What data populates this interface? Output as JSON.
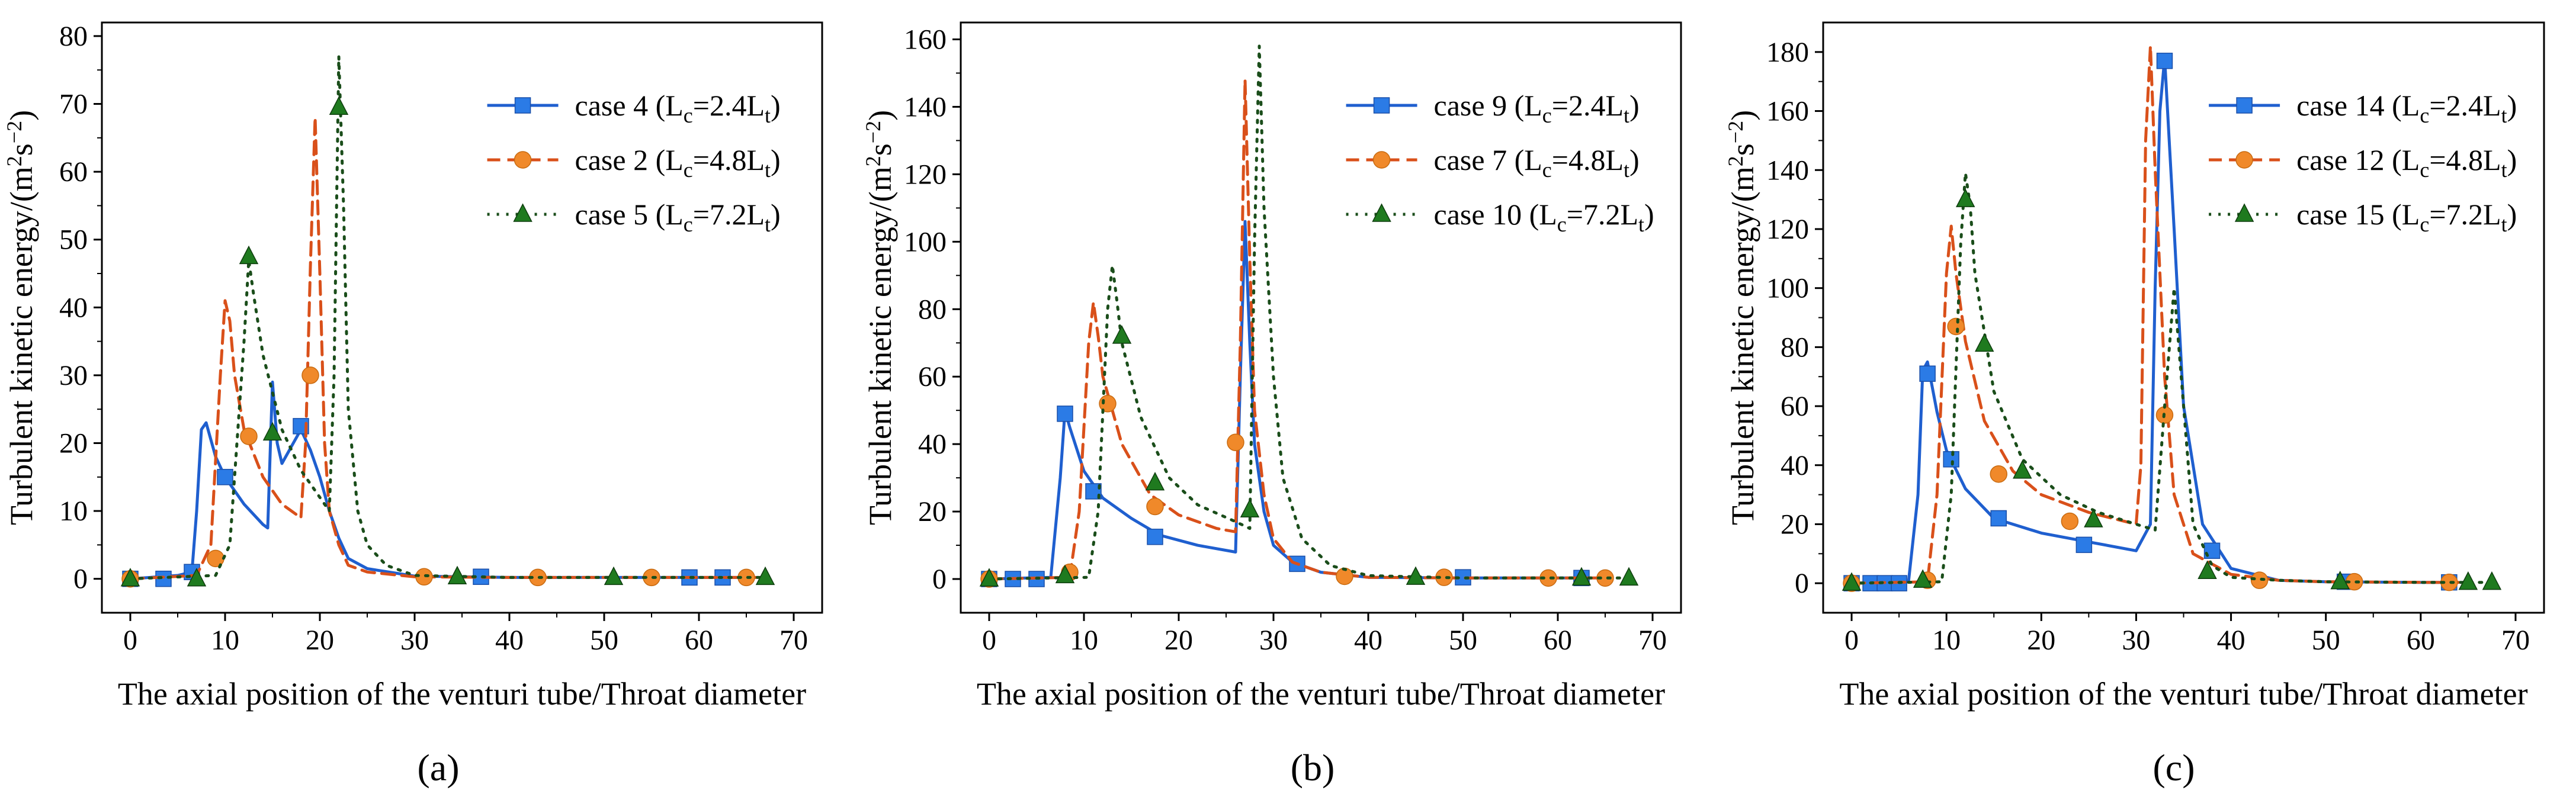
{
  "figure": {
    "xlabel": "The axial position of the venturi tube/Throat diameter",
    "ylabel_main": "Turbulent kinetic energy/(m",
    "ylabel_sup1": "2",
    "ylabel_mid": "s",
    "ylabel_sup2": "−2",
    "ylabel_end": ")"
  },
  "colors": {
    "blue": "#1f5fcf",
    "blue_marker": "#2b7be6",
    "orange": "#d9501a",
    "orange_marker": "#f0892a",
    "green": "#1a4d1a",
    "green_marker": "#1f7a1f"
  },
  "chart_data": [
    {
      "type": "line",
      "panel_label": "(a)",
      "xlabel": "The axial position of the venturi tube/Throat diameter",
      "ylabel": "Turbulent kinetic energy/(m2s−2)",
      "xlim": [
        -3,
        73
      ],
      "ylim": [
        -5,
        82
      ],
      "xticks": [
        0,
        10,
        20,
        30,
        40,
        50,
        60,
        70
      ],
      "yticks": [
        0,
        10,
        20,
        30,
        40,
        50,
        60,
        70,
        80
      ],
      "legend_position": "top-right",
      "series": [
        {
          "name": "case 4",
          "label_sub": "c",
          "label_mid": "=2.4L",
          "label_sub2": "t",
          "style": "solid",
          "color": "blue",
          "marker": "square",
          "x": [
            0,
            5,
            6.5,
            7,
            7.5,
            8,
            9,
            10,
            12,
            14,
            14.5,
            15,
            15.5,
            16,
            17,
            18,
            19,
            20,
            21,
            22,
            23,
            25,
            30,
            40,
            50,
            60,
            65
          ],
          "y": [
            0,
            0.5,
            1,
            10,
            22,
            23,
            18,
            15,
            11,
            8,
            7.5,
            29,
            20,
            17,
            19.5,
            22,
            19,
            15,
            10,
            6,
            3,
            1.5,
            0.4,
            0.2,
            0.2,
            0.2,
            0.2
          ],
          "markers_x": [
            0,
            3.5,
            6.5,
            10,
            18,
            37,
            59,
            62.5
          ],
          "markers_y": [
            0,
            0,
            1,
            15,
            22.5,
            0.3,
            0.2,
            0.2
          ]
        },
        {
          "name": "case 2",
          "label_sub": "c",
          "label_mid": "=4.8L",
          "label_sub2": "t",
          "style": "dashed",
          "color": "orange",
          "marker": "circle",
          "x": [
            0,
            7,
            8.5,
            9.5,
            10,
            10.5,
            11,
            12,
            14,
            16,
            18,
            18.5,
            19,
            19.5,
            20,
            20.5,
            21,
            22,
            23,
            25,
            30,
            40,
            50,
            60,
            67
          ],
          "y": [
            0,
            0.5,
            5,
            30,
            41,
            38,
            30,
            22,
            15,
            11,
            9,
            20,
            46,
            68,
            45,
            20,
            10,
            5,
            2,
            1,
            0.3,
            0.2,
            0.2,
            0.2,
            0.2
          ],
          "markers_x": [
            0,
            9,
            12.5,
            19,
            31,
            43,
            55,
            65
          ],
          "markers_y": [
            0,
            3,
            21,
            30,
            0.3,
            0.2,
            0.2,
            0.2
          ]
        },
        {
          "name": "case 5",
          "label_sub": "c",
          "label_mid": "=7.2L",
          "label_sub2": "t",
          "style": "dotted",
          "color": "green",
          "marker": "triangle",
          "x": [
            0,
            9,
            10.5,
            12,
            12.5,
            13,
            14,
            16,
            18,
            20,
            21,
            21.5,
            22,
            22.5,
            23,
            24,
            25,
            27,
            30,
            40,
            50,
            60,
            68
          ],
          "y": [
            0,
            0.5,
            5,
            35,
            47,
            42,
            33,
            22,
            16,
            12,
            10,
            30,
            77,
            55,
            25,
            10,
            5,
            2,
            0.5,
            0.2,
            0.2,
            0.2,
            0.2
          ],
          "markers_x": [
            0,
            7,
            12.5,
            15,
            22,
            34.5,
            51,
            67
          ],
          "markers_y": [
            0,
            0,
            47.5,
            21.5,
            69.5,
            0.3,
            0.2,
            0.2
          ]
        }
      ]
    },
    {
      "type": "line",
      "panel_label": "(b)",
      "xlabel": "The axial position of the venturi tube/Throat diameter",
      "ylabel": "Turbulent kinetic energy/(m2s−2)",
      "xlim": [
        -3,
        73
      ],
      "ylim": [
        -10,
        165
      ],
      "xticks": [
        0,
        10,
        20,
        30,
        40,
        50,
        60,
        70
      ],
      "yticks": [
        0,
        20,
        40,
        60,
        80,
        100,
        120,
        140,
        160
      ],
      "legend_position": "top-right",
      "series": [
        {
          "name": "case 9",
          "label_sub": "c",
          "label_mid": "=2.4L",
          "label_sub2": "t",
          "style": "solid",
          "color": "blue",
          "marker": "square",
          "x": [
            0,
            6.5,
            7.5,
            8,
            8.5,
            10,
            12,
            15,
            18,
            22,
            26,
            26.5,
            27,
            27.5,
            28,
            29,
            30,
            32,
            35,
            40,
            50,
            60,
            63
          ],
          "y": [
            0,
            0.5,
            30,
            50,
            45,
            32,
            24,
            18,
            13,
            10,
            8,
            60,
            106,
            70,
            40,
            20,
            10,
            5,
            2,
            0.5,
            0.3,
            0.3,
            0.3
          ],
          "markers_x": [
            0,
            2.5,
            5,
            8,
            11,
            17.5,
            32.5,
            50,
            62.5
          ],
          "markers_y": [
            0,
            0,
            0,
            49,
            26,
            12.5,
            4.5,
            0.5,
            0.3
          ]
        },
        {
          "name": "case 7",
          "label_sub": "c",
          "label_mid": "=4.8L",
          "label_sub2": "t",
          "style": "dashed",
          "color": "orange",
          "marker": "circle",
          "x": [
            0,
            8.5,
            9.5,
            10.5,
            11,
            11.5,
            12,
            14,
            17,
            20,
            24,
            26,
            26.5,
            27,
            27.5,
            28,
            29,
            30,
            32,
            35,
            40,
            50,
            60,
            65
          ],
          "y": [
            0,
            0.5,
            20,
            70,
            82,
            72,
            60,
            40,
            25,
            19,
            15,
            14,
            70,
            148,
            95,
            50,
            25,
            12,
            5,
            2,
            0.5,
            0.3,
            0.3,
            0.3
          ],
          "markers_x": [
            0,
            8.5,
            12.5,
            17.5,
            26,
            37.5,
            48,
            59,
            65
          ],
          "markers_y": [
            0,
            2,
            52,
            21.5,
            40.5,
            0.8,
            0.5,
            0.3,
            0.3
          ]
        },
        {
          "name": "case 10",
          "label_sub": "c",
          "label_mid": "=7.2L",
          "label_sub2": "t",
          "style": "dotted",
          "color": "green",
          "marker": "triangle",
          "x": [
            0,
            10.5,
            11.5,
            12.5,
            13,
            13.5,
            14,
            16,
            19,
            22,
            26,
            27.5,
            28,
            28.5,
            29,
            30,
            31,
            33,
            36,
            40,
            50,
            60,
            68
          ],
          "y": [
            0,
            0.5,
            20,
            80,
            93,
            82,
            70,
            48,
            30,
            22,
            17,
            15,
            100,
            158,
            110,
            60,
            30,
            12,
            4,
            1,
            0.3,
            0.3,
            0.3
          ],
          "markers_x": [
            0,
            8,
            14,
            17.5,
            27.5,
            45,
            62.5,
            67.5
          ],
          "markers_y": [
            0,
            1,
            72,
            28.5,
            20.5,
            0.5,
            0.3,
            0.3
          ]
        }
      ]
    },
    {
      "type": "line",
      "panel_label": "(c)",
      "xlabel": "The axial position of the venturi tube/Throat diameter",
      "ylabel": "Turbulent kinetic energy/(m2s−2)",
      "xlim": [
        -3,
        73
      ],
      "ylim": [
        -10,
        190
      ],
      "xticks": [
        0,
        10,
        20,
        30,
        40,
        50,
        60,
        70
      ],
      "yticks": [
        0,
        20,
        40,
        60,
        80,
        100,
        120,
        140,
        160,
        180
      ],
      "legend_position": "top-right",
      "series": [
        {
          "name": "case 14",
          "label_sub": "c",
          "label_mid": "=2.4L",
          "label_sub2": "t",
          "style": "solid",
          "color": "blue",
          "marker": "square",
          "x": [
            0,
            6,
            7,
            7.5,
            8,
            9,
            10,
            12,
            15,
            20,
            25,
            30,
            31.5,
            32,
            32.5,
            33,
            34,
            35,
            37,
            40,
            45,
            50,
            60,
            63
          ],
          "y": [
            0,
            0.5,
            30,
            72,
            75,
            58,
            45,
            32,
            22,
            17,
            14,
            11,
            20,
            100,
            160,
            178,
            120,
            60,
            20,
            5,
            1,
            0.5,
            0.3,
            0.3
          ],
          "markers_x": [
            0,
            2,
            3.5,
            5,
            8,
            10.5,
            15.5,
            24.5,
            33,
            38,
            52,
            63
          ],
          "markers_y": [
            0,
            0,
            0,
            0,
            71,
            42,
            22,
            13,
            177,
            11,
            0.5,
            0.3
          ]
        },
        {
          "name": "case 12",
          "label_sub": "c",
          "label_mid": "=4.8L",
          "label_sub2": "t",
          "style": "dashed",
          "color": "orange",
          "marker": "circle",
          "x": [
            0,
            8,
            9,
            10,
            10.5,
            11,
            12,
            14,
            17,
            20,
            25,
            30,
            30.5,
            31,
            31.5,
            32,
            33,
            34,
            36,
            40,
            45,
            50,
            60,
            64
          ],
          "y": [
            0,
            0.5,
            30,
            105,
            121,
            105,
            82,
            55,
            38,
            30,
            24,
            20,
            40,
            150,
            182,
            140,
            70,
            30,
            10,
            3,
            1,
            0.5,
            0.3,
            0.3
          ],
          "markers_x": [
            0,
            8,
            11,
            15.5,
            23,
            33,
            43,
            53,
            63
          ],
          "markers_y": [
            0,
            1,
            87,
            37,
            21,
            57,
            1,
            0.5,
            0.3
          ]
        },
        {
          "name": "case 15",
          "label_sub": "c",
          "label_mid": "=7.2L",
          "label_sub2": "t",
          "style": "dotted",
          "color": "green",
          "marker": "triangle",
          "x": [
            0,
            9.5,
            10.5,
            11.5,
            12,
            12.5,
            13,
            15,
            18,
            22,
            26,
            30,
            32,
            33,
            34,
            35,
            36,
            38,
            40,
            45,
            50,
            60,
            68
          ],
          "y": [
            0,
            0.5,
            30,
            115,
            139,
            128,
            105,
            65,
            42,
            30,
            24,
            20,
            18,
            60,
            100,
            60,
            20,
            6,
            2,
            1,
            0.5,
            0.3,
            0.3
          ],
          "markers_x": [
            0,
            7.5,
            12,
            14,
            18,
            25.5,
            37.5,
            51.5,
            65,
            67.5
          ],
          "markers_y": [
            0,
            1,
            130,
            81,
            38,
            21.5,
            4,
            0.5,
            0.3,
            0.3
          ]
        }
      ]
    }
  ]
}
